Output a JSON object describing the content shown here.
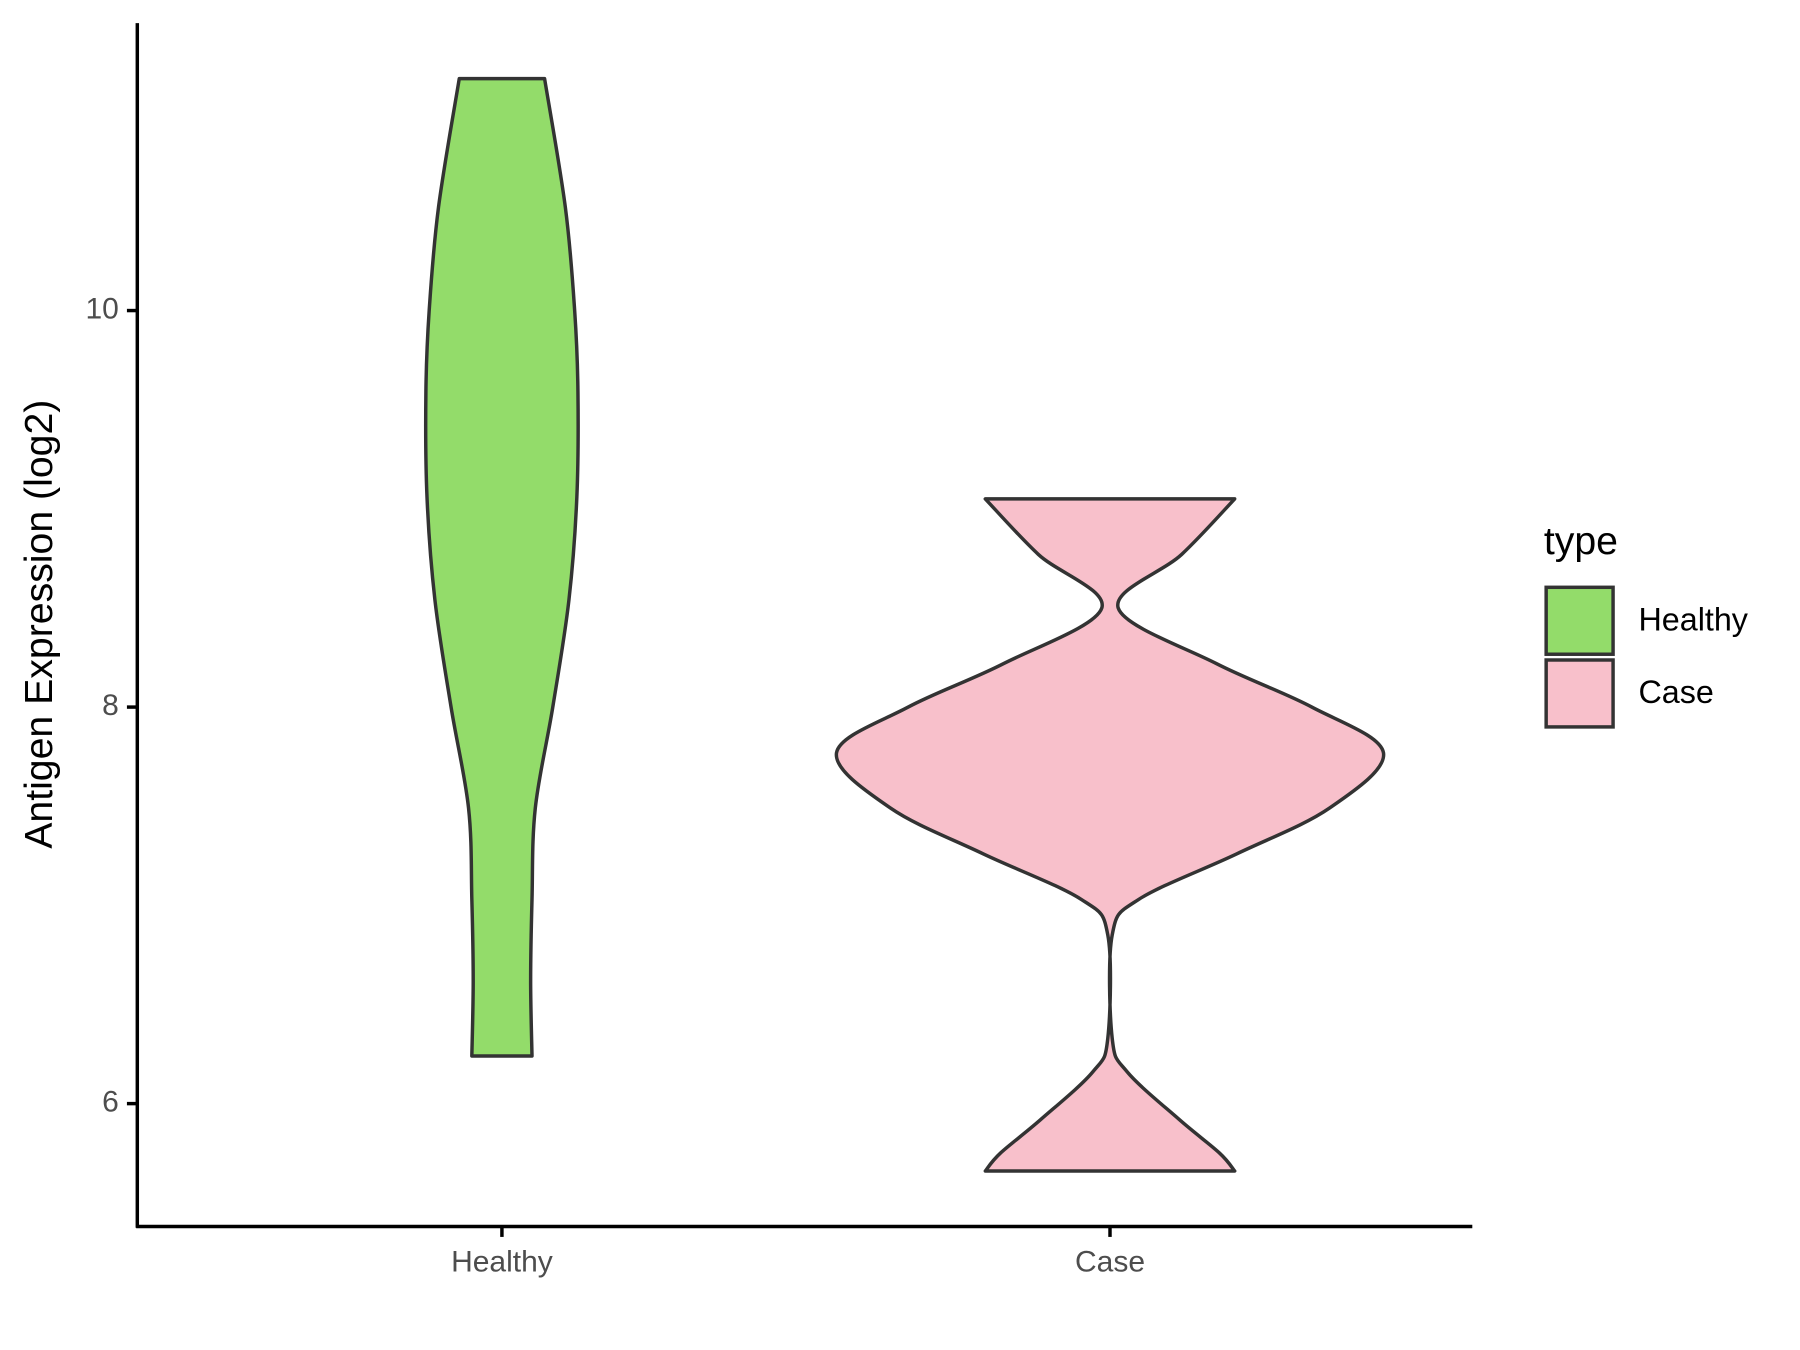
{
  "chart_data": {
    "type": "violin",
    "y_label": "Antigen Expression (log2)",
    "categories": [
      "Healthy",
      "Case"
    ],
    "legend_title": "type",
    "legend_position": "right",
    "ylim": [
      5.38,
      11.45
    ],
    "yticks": [
      6,
      8,
      10
    ],
    "grid": false,
    "series": [
      {
        "name": "Healthy",
        "color": "#93dc6a",
        "values": [
          11.17,
          10.52,
          10.0,
          9.59,
          9.06,
          8.54,
          8.0,
          7.49,
          7.03,
          6.62,
          6.24
        ],
        "density": [
          0.156,
          0.232,
          0.266,
          0.278,
          0.274,
          0.245,
          0.186,
          0.122,
          0.11,
          0.105,
          0.11
        ]
      },
      {
        "name": "Case",
        "color": "#f8c0cb",
        "values": [
          9.05,
          8.77,
          8.5,
          8.22,
          8.0,
          7.77,
          7.49,
          7.26,
          7.03,
          6.85,
          6.33,
          6.16,
          5.92,
          5.75,
          5.66
        ],
        "density": [
          0.456,
          0.262,
          0.03,
          0.388,
          0.738,
          1,
          0.802,
          0.464,
          0.105,
          0.008,
          0.008,
          0.063,
          0.253,
          0.401,
          0.456
        ]
      }
    ]
  }
}
